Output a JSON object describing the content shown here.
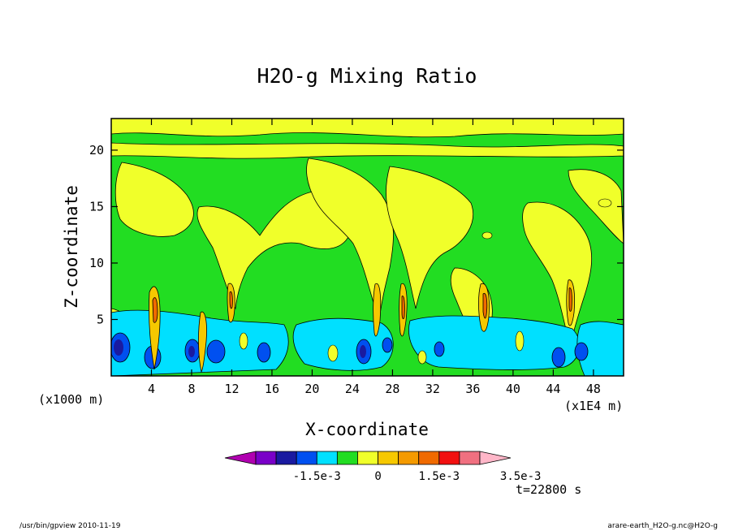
{
  "chart_data": {
    "type": "heatmap",
    "title": "H2O-g Mixing Ratio",
    "xlabel": "X-coordinate",
    "ylabel": "Z-coordinate",
    "x_unit_left": "(x1000 m)",
    "x_unit_right": "(x1E4 m)",
    "x_ticks": [
      "4",
      "8",
      "12",
      "16",
      "20",
      "24",
      "28",
      "32",
      "36",
      "40",
      "44",
      "48"
    ],
    "y_ticks": [
      "5",
      "10",
      "15",
      "20"
    ],
    "xlim": [
      0,
      51
    ],
    "ylim": [
      0,
      22.8
    ],
    "time_label": "t=22800 s",
    "colorbar": {
      "tick_labels": [
        "-1.5e-3",
        "0",
        "1.5e-3",
        "3.5e-3"
      ],
      "tick_levels": [
        -0.0015,
        0,
        0.0015,
        0.0035
      ],
      "colors": [
        "#b000b0",
        "#7a00c8",
        "#1a1aa0",
        "#0050f0",
        "#00e0ff",
        "#22dd22",
        "#f0ff2a",
        "#f6c800",
        "#f49a00",
        "#f06a00",
        "#f21010",
        "#f07080",
        "#ffb6c8"
      ]
    },
    "regions": {
      "background": "#22dd22",
      "low_level_band": "#00e0ff",
      "upper_plumes": "#f0ff2a",
      "updraft_cores": "#f06a00"
    }
  },
  "footer": {
    "left": "/usr/bin/gpview  2010-11-19",
    "right": "arare-earth_H2O-g.nc@H2O-g"
  }
}
